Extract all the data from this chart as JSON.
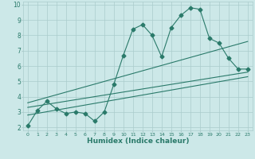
{
  "title": "",
  "xlabel": "Humidex (Indice chaleur)",
  "ylabel": "",
  "bg_color": "#cce8e8",
  "grid_color": "#aacccc",
  "line_color": "#2a7a6a",
  "xlim": [
    -0.5,
    23.5
  ],
  "ylim": [
    1.8,
    10.2
  ],
  "xticks": [
    0,
    1,
    2,
    3,
    4,
    5,
    6,
    7,
    8,
    9,
    10,
    11,
    12,
    13,
    14,
    15,
    16,
    17,
    18,
    19,
    20,
    21,
    22,
    23
  ],
  "yticks": [
    2,
    3,
    4,
    5,
    6,
    7,
    8,
    9,
    10
  ],
  "scatter_x": [
    0,
    1,
    2,
    3,
    4,
    5,
    6,
    7,
    8,
    9,
    10,
    11,
    12,
    13,
    14,
    15,
    16,
    17,
    18,
    19,
    20,
    21,
    22,
    23
  ],
  "scatter_y": [
    2.1,
    3.1,
    3.7,
    3.2,
    2.9,
    3.0,
    2.9,
    2.4,
    3.0,
    4.8,
    6.7,
    8.4,
    8.7,
    8.0,
    6.6,
    8.5,
    9.3,
    9.8,
    9.7,
    7.8,
    7.5,
    6.5,
    5.8,
    5.8
  ],
  "trend1_x": [
    0,
    23
  ],
  "trend1_y": [
    3.3,
    5.6
  ],
  "trend2_x": [
    0,
    23
  ],
  "trend2_y": [
    3.6,
    7.6
  ],
  "trend3_x": [
    0,
    23
  ],
  "trend3_y": [
    2.8,
    5.3
  ]
}
